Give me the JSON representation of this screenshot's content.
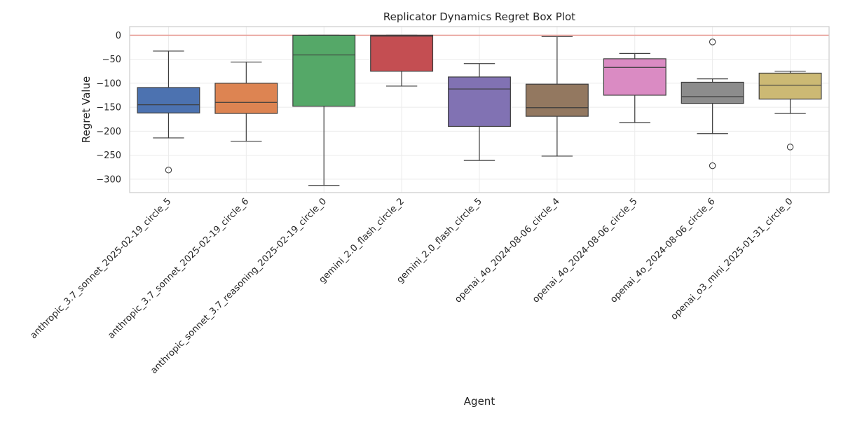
{
  "chart_data": {
    "type": "box",
    "title": "Replicator Dynamics Regret Box Plot",
    "xlabel": "Agent",
    "ylabel": "Regret Value",
    "ylim": [
      -328,
      18
    ],
    "yticks": [
      0,
      -50,
      -100,
      -150,
      -200,
      -250,
      -300
    ],
    "grid": true,
    "reference_line": 0,
    "reference_line_color": "#e8a09a",
    "categories": [
      "anthropic_3.7_sonnet_2025-02-19_circle_5",
      "anthropic_3.7_sonnet_2025-02-19_circle_6",
      "anthropic_sonnet_3.7_reasoning_2025-02-19_circle_0",
      "gemini_2.0_flash_circle_2",
      "gemini_2.0_flash_circle_5",
      "openai_4o_2024-08-06_circle_4",
      "openai_4o_2024-08-06_circle_5",
      "openai_4o_2024-08-06_circle_6",
      "openai_o3_mini_2025-01-31_circle_0"
    ],
    "boxes": [
      {
        "whislo": -214,
        "q1": -162,
        "med": -145,
        "q3": -109,
        "whishi": -33,
        "fliers": [
          -281
        ],
        "color": "#4c72b0"
      },
      {
        "whislo": -221,
        "q1": -163,
        "med": -140,
        "q3": -100,
        "whishi": -56,
        "fliers": [],
        "color": "#dd8452"
      },
      {
        "whislo": -313,
        "q1": -148,
        "med": -41,
        "q3": 0,
        "whishi": 0,
        "fliers": [],
        "color": "#55a868"
      },
      {
        "whislo": -106,
        "q1": -75,
        "med": -2,
        "q3": 0,
        "whishi": 0,
        "fliers": [],
        "color": "#c44e52"
      },
      {
        "whislo": -261,
        "q1": -190,
        "med": -112,
        "q3": -87,
        "whishi": -59,
        "fliers": [],
        "color": "#8172b3"
      },
      {
        "whislo": -252,
        "q1": -169,
        "med": -151,
        "q3": -102,
        "whishi": -3,
        "fliers": [],
        "color": "#937860"
      },
      {
        "whislo": -182,
        "q1": -125,
        "med": -67,
        "q3": -49,
        "whishi": -38,
        "fliers": [],
        "color": "#da8bc3"
      },
      {
        "whislo": -205,
        "q1": -142,
        "med": -128,
        "q3": -98,
        "whishi": -91,
        "fliers": [
          -14,
          -272
        ],
        "color": "#8c8c8c"
      },
      {
        "whislo": -163,
        "q1": -133,
        "med": -104,
        "q3": -79,
        "whishi": -75,
        "fliers": [
          -233
        ],
        "color": "#ccb974"
      }
    ]
  }
}
